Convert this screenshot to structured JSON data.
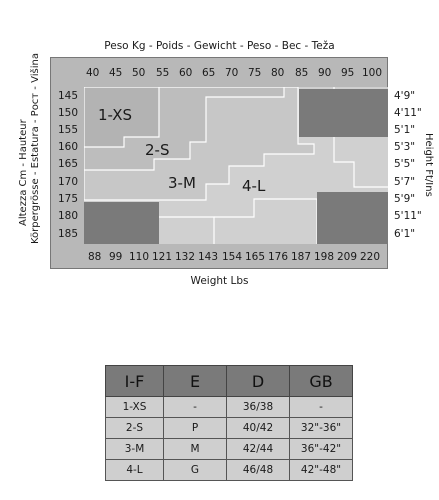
{
  "headers": {
    "weight_kg": "Peso Kg - Poids - Gewicht - Peso - Bec - Teža",
    "weight_lbs": "Weight Lbs",
    "height_cm_line1": "Altezza Cm - Hauteur",
    "height_cm_line2": "Körpergrösse - Estatura - Рост - Višina",
    "height_ft": "Height Ft/Ins"
  },
  "kg_ticks": [
    "40",
    "45",
    "50",
    "55",
    "60",
    "65",
    "70",
    "75",
    "80",
    "85",
    "90",
    "95",
    "100"
  ],
  "lbs_ticks": [
    "88",
    "99",
    "110",
    "121",
    "132",
    "143",
    "154",
    "165",
    "176",
    "187",
    "198",
    "209",
    "220"
  ],
  "cm_ticks": [
    "145",
    "150",
    "155",
    "160",
    "165",
    "170",
    "175",
    "180",
    "185"
  ],
  "ft_ticks": [
    "4'9\"",
    "4'11\"",
    "5'1\"",
    "5'3\"",
    "5'5\"",
    "5'7\"",
    "5'9\"",
    "5'11\"",
    "6'1\""
  ],
  "regions": [
    {
      "label": "1-XS"
    },
    {
      "label": "2-S"
    },
    {
      "label": "3-M"
    },
    {
      "label": "4-L"
    }
  ],
  "table": {
    "columns": [
      "I-F",
      "E",
      "D",
      "GB"
    ],
    "rows": [
      [
        "1-XS",
        "-",
        "36/38",
        "-"
      ],
      [
        "2-S",
        "P",
        "40/42",
        "32\"-36\""
      ],
      [
        "3-M",
        "M",
        "42/44",
        "36\"-42\""
      ],
      [
        "4-L",
        "G",
        "46/48",
        "42\"-48\""
      ]
    ]
  },
  "colors": {
    "frame_bg": "#b8b8b8",
    "size_1_xs": "#b3b3b3",
    "size_2_s": "#bdbdbd",
    "size_3_m": "#c7c7c7",
    "size_4_l": "#d0d0d0",
    "out_of_range": "#7a7a7a",
    "table_header": "#7a7a7a",
    "table_cell": "#cfcfcf"
  }
}
